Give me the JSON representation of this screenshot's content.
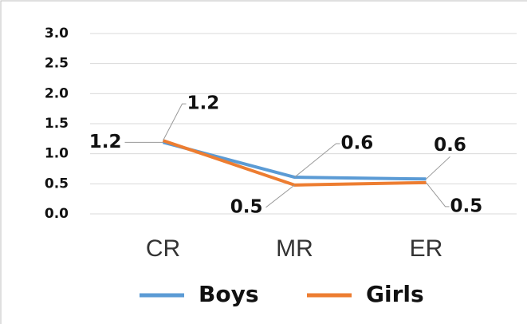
{
  "chart_data": {
    "type": "line",
    "categories": [
      "CR",
      "MR",
      "ER"
    ],
    "series": [
      {
        "name": "Boys",
        "color": "#5b9bd5",
        "values": [
          1.19,
          0.61,
          0.58
        ],
        "value_labels": [
          "1.2",
          "0.6",
          "0.6"
        ]
      },
      {
        "name": "Girls",
        "color": "#ed7d31",
        "values": [
          1.22,
          0.48,
          0.52
        ],
        "value_labels": [
          "1.2",
          "0.5",
          "0.5"
        ]
      }
    ],
    "ylim": [
      0,
      3
    ],
    "yticks": [
      {
        "value": 0,
        "label": "0.0"
      },
      0.5,
      {
        "value": 1,
        "label": "1.0"
      },
      1.5,
      {
        "value": 2,
        "label": "2.0"
      },
      2.5,
      {
        "value": 3,
        "label": "3.0"
      }
    ],
    "grid": true,
    "legend": "bottom"
  }
}
